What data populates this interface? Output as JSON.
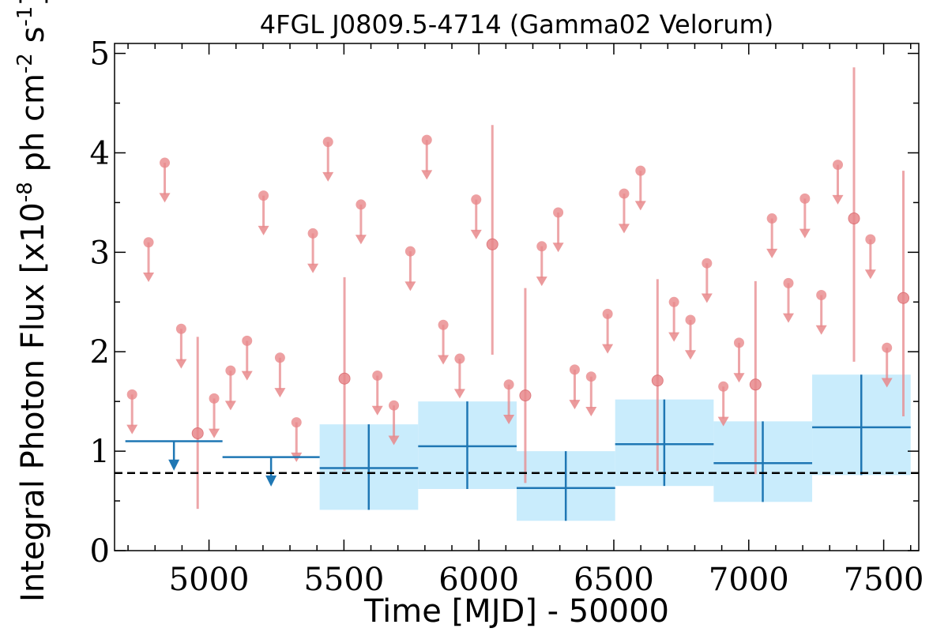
{
  "chart_data": {
    "type": "scatter",
    "title": "4FGL J0809.5-4714 (Gamma02 Velorum)",
    "xlabel": "Time [MJD] - 50000",
    "ylabel": "Integral Photon Flux [x10^-8 ph cm^-2 s^-1]",
    "xlim": [
      4650,
      7630
    ],
    "ylim": [
      0,
      5.1
    ],
    "xticks": [
      5000,
      5500,
      6000,
      6500,
      7000,
      7500
    ],
    "yticks": [
      0,
      1,
      2,
      3,
      4,
      5
    ],
    "grid": false,
    "legend": "none",
    "mean_flux": 0.78,
    "colors": {
      "monthly": "#e8888b",
      "yearly": "#1f77b4",
      "band": "#c9ecfc",
      "mean_line": "#000000"
    },
    "series": [
      {
        "points": [
          {
            "x": 4958,
            "y": 1.18,
            "lo": 0.42,
            "hi": 2.15
          },
          {
            "x": 5502,
            "y": 1.73,
            "lo": 0.8,
            "hi": 2.75
          },
          {
            "x": 6050,
            "y": 3.08,
            "lo": 1.97,
            "hi": 4.28
          },
          {
            "x": 6172,
            "y": 1.56,
            "lo": 0.68,
            "hi": 2.64
          },
          {
            "x": 6662,
            "y": 1.71,
            "lo": 0.8,
            "hi": 2.73
          },
          {
            "x": 7025,
            "y": 1.67,
            "lo": 0.77,
            "hi": 2.71
          },
          {
            "x": 7390,
            "y": 3.34,
            "lo": 1.9,
            "hi": 4.86
          },
          {
            "x": 7573,
            "y": 2.54,
            "lo": 1.35,
            "hi": 3.82
          }
        ],
        "upper_limits": [
          {
            "x": 4715,
            "y": 1.57
          },
          {
            "x": 4776,
            "y": 3.1
          },
          {
            "x": 4836,
            "y": 3.9
          },
          {
            "x": 4897,
            "y": 2.23
          },
          {
            "x": 5019,
            "y": 1.53
          },
          {
            "x": 5080,
            "y": 1.81
          },
          {
            "x": 5141,
            "y": 2.11
          },
          {
            "x": 5202,
            "y": 3.57
          },
          {
            "x": 5263,
            "y": 1.94
          },
          {
            "x": 5324,
            "y": 1.29
          },
          {
            "x": 5385,
            "y": 3.19
          },
          {
            "x": 5441,
            "y": 4.11
          },
          {
            "x": 5563,
            "y": 3.48
          },
          {
            "x": 5624,
            "y": 1.76
          },
          {
            "x": 5685,
            "y": 1.46
          },
          {
            "x": 5746,
            "y": 3.01
          },
          {
            "x": 5807,
            "y": 4.13
          },
          {
            "x": 5868,
            "y": 2.27
          },
          {
            "x": 5929,
            "y": 1.93
          },
          {
            "x": 5990,
            "y": 3.53
          },
          {
            "x": 6111,
            "y": 1.67
          },
          {
            "x": 6233,
            "y": 3.06
          },
          {
            "x": 6294,
            "y": 3.4
          },
          {
            "x": 6355,
            "y": 1.82
          },
          {
            "x": 6416,
            "y": 1.75
          },
          {
            "x": 6477,
            "y": 2.38
          },
          {
            "x": 6538,
            "y": 3.59
          },
          {
            "x": 6599,
            "y": 3.82
          },
          {
            "x": 6723,
            "y": 2.5
          },
          {
            "x": 6784,
            "y": 2.32
          },
          {
            "x": 6845,
            "y": 2.89
          },
          {
            "x": 6906,
            "y": 1.65
          },
          {
            "x": 6964,
            "y": 2.09
          },
          {
            "x": 7086,
            "y": 3.34
          },
          {
            "x": 7147,
            "y": 2.69
          },
          {
            "x": 7208,
            "y": 3.54
          },
          {
            "x": 7269,
            "y": 2.57
          },
          {
            "x": 7330,
            "y": 3.88
          },
          {
            "x": 7451,
            "y": 3.13
          },
          {
            "x": 7512,
            "y": 2.04
          }
        ]
      },
      {
        "bins": [
          {
            "x0": 4690,
            "x1": 5050,
            "xc": 4870,
            "y": 1.1,
            "ul": true
          },
          {
            "x0": 5050,
            "x1": 5410,
            "xc": 5230,
            "y": 0.94,
            "ul": true
          },
          {
            "x0": 5410,
            "x1": 5775,
            "xc": 5592,
            "y": 0.83,
            "lo": 0.41,
            "hi": 1.27
          },
          {
            "x0": 5775,
            "x1": 6140,
            "xc": 5957,
            "y": 1.05,
            "lo": 0.62,
            "hi": 1.5
          },
          {
            "x0": 6140,
            "x1": 6505,
            "xc": 6322,
            "y": 0.63,
            "lo": 0.3,
            "hi": 1.0
          },
          {
            "x0": 6505,
            "x1": 6870,
            "xc": 6687,
            "y": 1.07,
            "lo": 0.65,
            "hi": 1.52
          },
          {
            "x0": 6870,
            "x1": 7235,
            "xc": 7052,
            "y": 0.88,
            "lo": 0.49,
            "hi": 1.3
          },
          {
            "x0": 7235,
            "x1": 7600,
            "xc": 7417,
            "y": 1.24,
            "lo": 0.76,
            "hi": 1.77
          }
        ]
      }
    ]
  }
}
